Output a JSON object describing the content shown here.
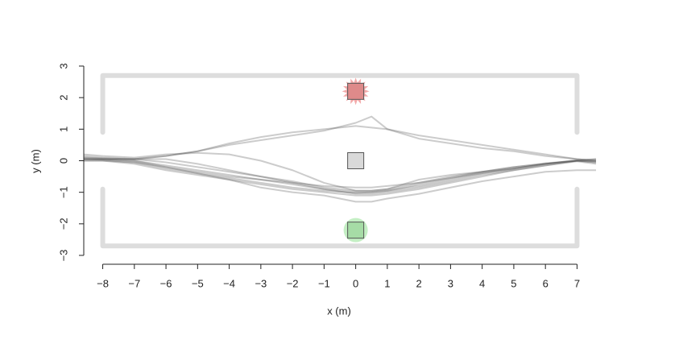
{
  "chart_data": {
    "type": "line",
    "xlabel": "x (m)",
    "ylabel": "y (m)",
    "xlim": [
      -8.6,
      7.6
    ],
    "ylim": [
      -3,
      3
    ],
    "xticks": [
      {
        "value": -8,
        "label": "−8"
      },
      {
        "value": -7,
        "label": "−7"
      },
      {
        "value": -6,
        "label": "−6"
      },
      {
        "value": -5,
        "label": "−5"
      },
      {
        "value": -4,
        "label": "−4"
      },
      {
        "value": -3,
        "label": "−3"
      },
      {
        "value": -2,
        "label": "−2"
      },
      {
        "value": -1,
        "label": "−1"
      },
      0,
      1,
      2,
      3,
      4,
      5,
      6,
      7
    ],
    "yticks": [
      {
        "value": -3,
        "label": "−3"
      },
      {
        "value": -2,
        "label": "−2"
      },
      {
        "value": -1,
        "label": "−1"
      },
      0,
      1,
      2,
      3
    ],
    "line_color": "#555555",
    "x": [
      -8.6,
      -8,
      -7,
      -6,
      -5,
      -4,
      -3,
      -2,
      -1,
      0,
      0.5,
      1,
      2,
      3,
      4,
      5,
      6,
      7,
      7.6
    ],
    "series": [
      {
        "values": [
          0.1,
          0.05,
          0,
          -0.15,
          -0.3,
          -0.45,
          -0.6,
          -0.75,
          -0.9,
          -1.0,
          -1.0,
          -0.95,
          -0.8,
          -0.6,
          -0.4,
          -0.25,
          -0.1,
          0,
          -0.05
        ]
      },
      {
        "values": [
          0.05,
          0.03,
          -0.05,
          -0.25,
          -0.4,
          -0.55,
          -0.7,
          -0.85,
          -0.95,
          -1.02,
          -1.0,
          -0.95,
          -0.75,
          -0.55,
          -0.35,
          -0.2,
          -0.1,
          0,
          0
        ]
      },
      {
        "values": [
          0.15,
          0.1,
          0.05,
          -0.05,
          -0.2,
          -0.35,
          -0.5,
          -0.7,
          -0.9,
          -1.05,
          -1.05,
          -1.0,
          -0.85,
          -0.65,
          -0.45,
          -0.3,
          -0.15,
          -0.02,
          -0.1
        ]
      },
      {
        "values": [
          0,
          0,
          -0.1,
          -0.3,
          -0.45,
          -0.6,
          -0.75,
          -0.9,
          -1.0,
          -1.1,
          -1.1,
          -1.05,
          -0.9,
          -0.7,
          -0.5,
          -0.3,
          -0.15,
          0,
          0.05
        ]
      },
      {
        "values": [
          0.1,
          0.08,
          0.05,
          0.05,
          -0.1,
          -0.3,
          -0.5,
          -0.65,
          -0.85,
          -0.95,
          -0.95,
          -0.9,
          -0.7,
          -0.5,
          -0.35,
          -0.2,
          -0.08,
          0,
          -0.02
        ]
      },
      {
        "values": [
          0.05,
          0.05,
          0,
          -0.2,
          -0.4,
          -0.6,
          -0.85,
          -1.0,
          -1.1,
          -1.3,
          -1.3,
          -1.2,
          -1.05,
          -0.85,
          -0.65,
          -0.5,
          -0.35,
          -0.3,
          -0.3
        ]
      },
      {
        "values": [
          0.05,
          0.05,
          0.05,
          0.15,
          0.3,
          0.55,
          0.75,
          0.9,
          1.0,
          1.1,
          1.05,
          1.0,
          0.8,
          0.65,
          0.5,
          0.35,
          0.2,
          0.05,
          0
        ]
      },
      {
        "values": [
          0.05,
          0.05,
          0.05,
          0.15,
          0.3,
          0.5,
          0.65,
          0.8,
          0.95,
          1.2,
          1.4,
          1.0,
          0.7,
          0.55,
          0.4,
          0.3,
          0.15,
          0.05,
          0
        ]
      },
      {
        "values": [
          0.2,
          0.15,
          0.1,
          0.2,
          0.25,
          0.2,
          0.0,
          -0.3,
          -0.7,
          -0.95,
          -0.95,
          -0.9,
          -0.6,
          -0.45,
          -0.35,
          -0.25,
          -0.1,
          0,
          -0.05
        ]
      },
      {
        "values": [
          0,
          0,
          -0.05,
          -0.2,
          -0.35,
          -0.5,
          -0.6,
          -0.7,
          -0.8,
          -0.85,
          -0.85,
          -0.8,
          -0.7,
          -0.55,
          -0.4,
          -0.25,
          -0.1,
          0.02,
          0.05
        ]
      }
    ],
    "wall_color": "#dddddd",
    "walls": [
      {
        "x": [
          -8,
          -8,
          7,
          7
        ],
        "y": [
          0.9,
          2.7,
          2.7,
          0.9
        ]
      },
      {
        "x": [
          -8,
          -8,
          7,
          7
        ],
        "y": [
          -0.9,
          -2.7,
          -2.7,
          -0.9
        ]
      }
    ],
    "markers": [
      {
        "x": 0,
        "y": 2.2,
        "fill": "#de8a8a",
        "halo": "star",
        "halo_color": "#f3aaaa"
      },
      {
        "x": 0,
        "y": 0,
        "fill": "#d9d9d9"
      },
      {
        "x": 0,
        "y": -2.2,
        "fill": "#a6dca6",
        "halo": "circle",
        "halo_color": "#c4efc4"
      }
    ]
  }
}
